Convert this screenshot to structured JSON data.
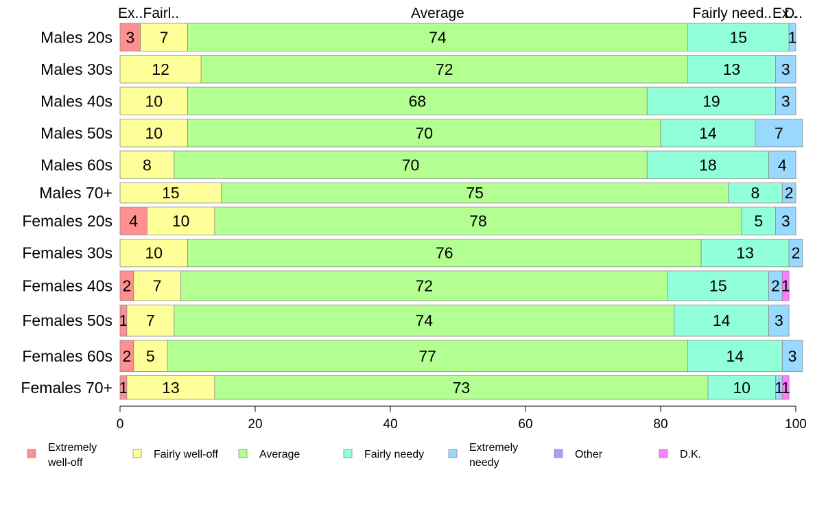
{
  "chart_data": {
    "type": "bar",
    "orientation": "horizontal",
    "stacked": true,
    "categories": [
      "Males 20s",
      "Males 30s",
      "Males 40s",
      "Males 50s",
      "Males 60s",
      "Males 70+",
      "Females 20s",
      "Females 30s",
      "Females 40s",
      "Females 50s",
      "Females 60s",
      "Females 70+"
    ],
    "row_weights": [
      40,
      40,
      40,
      40,
      40,
      29,
      40,
      40,
      43,
      45,
      45,
      34
    ],
    "series": [
      {
        "name": "Extremely well-off",
        "color": "#ff9090",
        "values": [
          3,
          0,
          0,
          0,
          0,
          0,
          4,
          0,
          2,
          1,
          2,
          1
        ]
      },
      {
        "name": "Fairly well-off",
        "color": "#ffff99",
        "values": [
          7,
          12,
          10,
          10,
          8,
          15,
          10,
          10,
          7,
          7,
          5,
          13
        ]
      },
      {
        "name": "Average",
        "color": "#b3ff91",
        "values": [
          74,
          72,
          68,
          70,
          70,
          75,
          78,
          76,
          72,
          74,
          77,
          73
        ]
      },
      {
        "name": "Fairly needy",
        "color": "#91ffd8",
        "values": [
          15,
          13,
          19,
          14,
          18,
          8,
          5,
          13,
          15,
          14,
          14,
          10
        ]
      },
      {
        "name": "Extremely needy",
        "color": "#99d8ff",
        "values": [
          1,
          3,
          3,
          7,
          4,
          2,
          3,
          2,
          2,
          3,
          3,
          1
        ]
      },
      {
        "name": "Other",
        "color": "#b497ff",
        "values": [
          0,
          0,
          0,
          0,
          0,
          0,
          0,
          0,
          0,
          0,
          0,
          0
        ]
      },
      {
        "name": "D.K.",
        "color": "#ff7dff",
        "values": [
          0,
          0,
          0,
          0,
          0,
          0,
          0,
          0,
          1,
          0,
          0,
          1
        ]
      }
    ],
    "top_labels": [
      "Ex..",
      "Fairl..",
      "Average",
      "Fairly need..",
      "Ex..",
      "D.."
    ],
    "xlim": [
      0,
      100
    ],
    "xticks": [
      "0",
      "20",
      "40",
      "60",
      "80",
      "100"
    ],
    "legend": {
      "placement": "bottom",
      "entries": [
        {
          "lines": [
            "Extremely",
            "well-off"
          ],
          "color": "#ff9090"
        },
        {
          "lines": [
            "Fairly well-off"
          ],
          "color": "#ffff99"
        },
        {
          "lines": [
            "Average"
          ],
          "color": "#b3ff91"
        },
        {
          "lines": [
            "Fairly needy"
          ],
          "color": "#91ffd8"
        },
        {
          "lines": [
            "Extremely",
            "needy"
          ],
          "color": "#99d8ff"
        },
        {
          "lines": [
            "Other"
          ],
          "color": "#b497ff"
        },
        {
          "lines": [
            "D.K."
          ],
          "color": "#ff7dff"
        }
      ]
    },
    "grid": false
  }
}
